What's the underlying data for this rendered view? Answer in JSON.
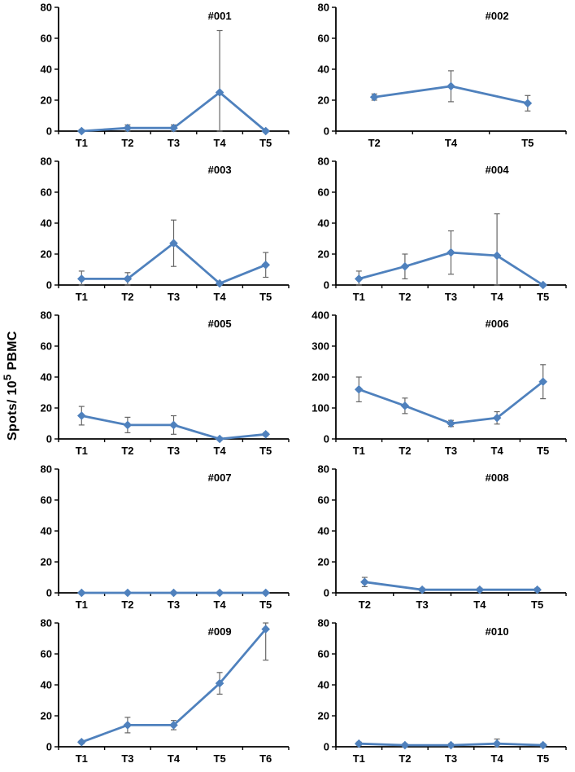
{
  "figure": {
    "ylabel_pre": "Spots/ 10",
    "ylabel_sup": "5",
    "ylabel_post": " PBMC"
  },
  "style": {
    "line_color": "#4F81BD",
    "error_color": "#666666",
    "axis_color": "#000000",
    "text_color": "#000000",
    "background": "#ffffff"
  },
  "chart_data": [
    {
      "type": "line",
      "title": "#001",
      "x": [
        "T1",
        "T2",
        "T3",
        "T4",
        "T5"
      ],
      "values": [
        0,
        2,
        2,
        25,
        0
      ],
      "errors": [
        1,
        2,
        2,
        40,
        1
      ],
      "ylim": [
        0,
        80
      ],
      "yticks": [
        0,
        20,
        40,
        60,
        80
      ],
      "legend": "none",
      "grid": false
    },
    {
      "type": "line",
      "title": "#002",
      "x": [
        "T2",
        "T4",
        "T5"
      ],
      "values": [
        22,
        29,
        18
      ],
      "errors": [
        2,
        10,
        5
      ],
      "ylim": [
        0,
        80
      ],
      "yticks": [
        0,
        20,
        40,
        60,
        80
      ],
      "legend": "none",
      "grid": false
    },
    {
      "type": "line",
      "title": "#003",
      "x": [
        "T1",
        "T2",
        "T3",
        "T4",
        "T5"
      ],
      "values": [
        4,
        4,
        27,
        1,
        13
      ],
      "errors": [
        5,
        4,
        15,
        1,
        8
      ],
      "ylim": [
        0,
        80
      ],
      "yticks": [
        0,
        20,
        40,
        60,
        80
      ],
      "legend": "none",
      "grid": false
    },
    {
      "type": "line",
      "title": "#004",
      "x": [
        "T1",
        "T2",
        "T3",
        "T4",
        "T5"
      ],
      "values": [
        4,
        12,
        21,
        19,
        0
      ],
      "errors": [
        5,
        8,
        14,
        27,
        0
      ],
      "ylim": [
        0,
        80
      ],
      "yticks": [
        0,
        20,
        40,
        60,
        80
      ],
      "legend": "none",
      "grid": false
    },
    {
      "type": "line",
      "title": "#005",
      "x": [
        "T1",
        "T2",
        "T3",
        "T4",
        "T5"
      ],
      "values": [
        15,
        9,
        9,
        0,
        3
      ],
      "errors": [
        6,
        5,
        6,
        1,
        1
      ],
      "ylim": [
        0,
        80
      ],
      "yticks": [
        0,
        20,
        40,
        60,
        80
      ],
      "legend": "none",
      "grid": false
    },
    {
      "type": "line",
      "title": "#006",
      "x": [
        "T1",
        "T2",
        "T3",
        "T4",
        "T5"
      ],
      "values": [
        160,
        107,
        50,
        68,
        185
      ],
      "errors": [
        40,
        25,
        10,
        20,
        55
      ],
      "ylim": [
        0,
        400
      ],
      "yticks": [
        0,
        100,
        200,
        300,
        400
      ],
      "legend": "none",
      "grid": false
    },
    {
      "type": "line",
      "title": "#007",
      "x": [
        "T1",
        "T2",
        "T3",
        "T4",
        "T5"
      ],
      "values": [
        0,
        0,
        0,
        0,
        0
      ],
      "errors": [
        0,
        0,
        0,
        0,
        0
      ],
      "ylim": [
        0,
        80
      ],
      "yticks": [
        0,
        20,
        40,
        60,
        80
      ],
      "legend": "none",
      "grid": false
    },
    {
      "type": "line",
      "title": "#008",
      "x": [
        "T2",
        "T3",
        "T4",
        "T5"
      ],
      "values": [
        7,
        2,
        2,
        2
      ],
      "errors": [
        3,
        1,
        1,
        1
      ],
      "ylim": [
        0,
        80
      ],
      "yticks": [
        0,
        20,
        40,
        60,
        80
      ],
      "legend": "none",
      "grid": false
    },
    {
      "type": "line",
      "title": "#009",
      "x": [
        "T1",
        "T3",
        "T4",
        "T5",
        "T6"
      ],
      "values": [
        3,
        14,
        14,
        41,
        76
      ],
      "errors": [
        1,
        5,
        3,
        7,
        20
      ],
      "ylim": [
        0,
        80
      ],
      "yticks": [
        0,
        20,
        40,
        60,
        80
      ],
      "legend": "none",
      "grid": false
    },
    {
      "type": "line",
      "title": "#010",
      "x": [
        "T1",
        "T2",
        "T3",
        "T4",
        "T5"
      ],
      "values": [
        2,
        1,
        1,
        2,
        1
      ],
      "errors": [
        1,
        1,
        1,
        3,
        1
      ],
      "ylim": [
        0,
        80
      ],
      "yticks": [
        0,
        20,
        40,
        60,
        80
      ],
      "legend": "none",
      "grid": false
    }
  ]
}
